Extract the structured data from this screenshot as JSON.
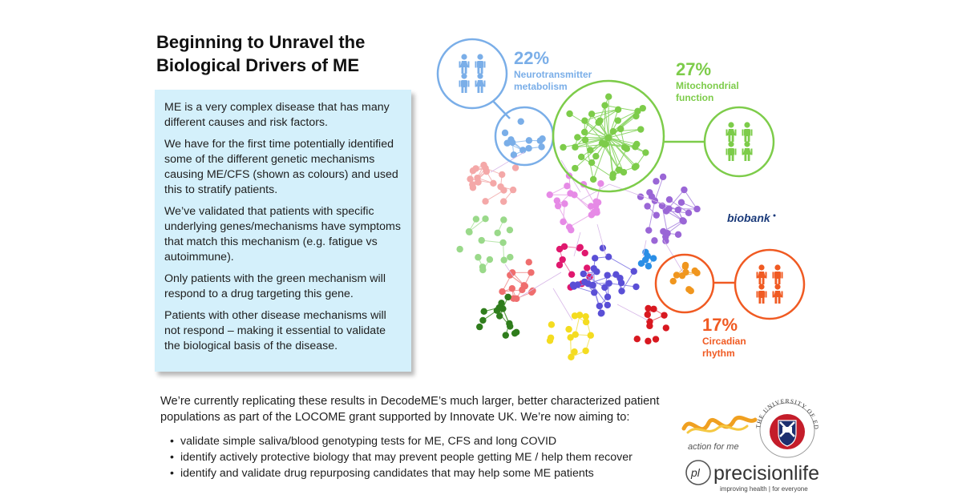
{
  "title": {
    "line1": "Beginning to Unravel the",
    "line2": "Biological Drivers of ME"
  },
  "info_box": {
    "paragraphs": [
      "ME is a very complex disease that has many different causes and risk factors.",
      "We have for the first time potentially identified some of the different genetic mechanisms causing ME/CFS (shown as colours) and used this to stratify patients.",
      "We’ve validated that patients with specific underlying genes/mechanisms have symptoms that match this mechanism (e.g. fatigue vs autoimmune).",
      "Only patients with the green mechanism will respond to a drug targeting this gene.",
      "Patients with other disease mechanisms will not respond – making it essential to validate the biological basis of the disease."
    ]
  },
  "callouts": [
    {
      "percent": "22%",
      "label_lines": [
        "Neurotransmitter",
        "metabolism"
      ],
      "color": "#7aaee8"
    },
    {
      "percent": "27%",
      "label_lines": [
        "Mitochondrial",
        "function"
      ],
      "color": "#7dcc4a"
    },
    {
      "percent": "17%",
      "label_lines": [
        "Circadian",
        "rhythm"
      ],
      "color": "#f05a22"
    }
  ],
  "biobank_logo": "biobank",
  "bottom": {
    "intro": "We’re currently replicating these results in DecodeME’s much larger, better characterized patient populations as part of the LOCOME grant supported by Innovate UK. We’re now aiming to:",
    "bullets": [
      "validate simple saliva/blood genotyping tests for ME, CFS and long COVID",
      "identify actively protective biology that may prevent people getting ME / help them recover",
      "identify and validate drug repurposing candidates that may help some ME patients"
    ]
  },
  "logos": {
    "action_for_me": "action for me",
    "edinburgh": "THE UNIVERSITY OF EDINBURGH",
    "precision_life_mark": "pl",
    "precision_life": "precisionlife",
    "precision_life_tagline": "improving health | for everyone"
  },
  "colors": {
    "blue": "#7aaee8",
    "green": "#7dcc4a",
    "orange": "#f05a22",
    "infobox_bg": "#d4f0fb",
    "biobank": "#1a3a7a"
  }
}
